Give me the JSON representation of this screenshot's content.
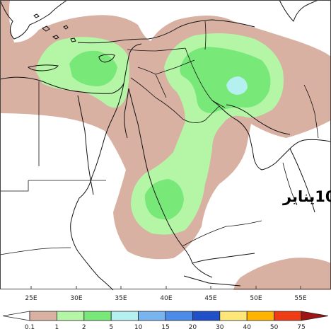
{
  "map": {
    "date_label": "10يناير",
    "longitude_ticks": [
      "25E",
      "30E",
      "35E",
      "40E",
      "45E",
      "50E",
      "55E"
    ]
  },
  "legend": {
    "levels": [
      "0.1",
      "1",
      "2",
      "5",
      "10",
      "15",
      "20",
      "30",
      "40",
      "50",
      "75"
    ],
    "colors": [
      "#d8b1a3",
      "#b4f5a6",
      "#78e878",
      "#b4f0f0",
      "#78b4f0",
      "#4a8ce8",
      "#2050c8",
      "#ffe678",
      "#ffb400",
      "#f03c14",
      "#a01414"
    ],
    "under_color": "#ffffff",
    "over_color": "#a01414"
  },
  "colors": {
    "precip_light": "#d8b1a3",
    "precip_green_light": "#b4f5a6",
    "precip_green": "#78e878",
    "precip_cyan": "#b4f0f0"
  }
}
